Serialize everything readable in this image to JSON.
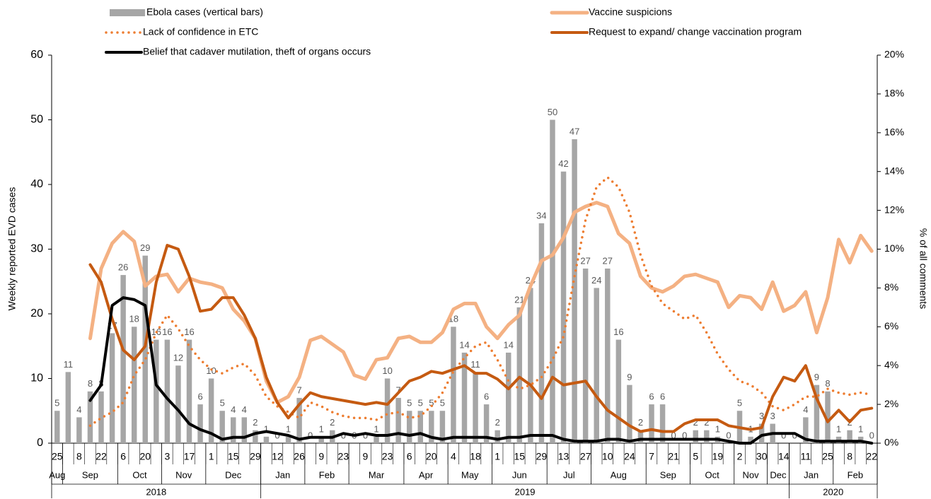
{
  "chart_data": {
    "type": "bar",
    "y_label": "Weekly reported EVD cases",
    "y2_label": "% of all comments",
    "categories": [
      "25",
      null,
      "8",
      null,
      "22",
      null,
      "6",
      null,
      "20",
      null,
      "3",
      null,
      "17",
      null,
      "1",
      null,
      "15",
      null,
      "29",
      null,
      "12",
      null,
      "26",
      null,
      "9",
      null,
      "23",
      null,
      "9",
      null,
      "23",
      null,
      "6",
      null,
      "20",
      null,
      "4",
      null,
      "18",
      null,
      "1",
      null,
      "15",
      null,
      "29",
      null,
      "13",
      null,
      "27",
      null,
      "10",
      null,
      "24",
      null,
      "7",
      null,
      "21",
      null,
      "5",
      null,
      "19",
      null,
      "2",
      null,
      "30",
      null,
      "14",
      null,
      "11",
      null,
      "25",
      null,
      "8",
      null,
      "22"
    ],
    "x_months": [
      "Aug",
      "Sep",
      null,
      null,
      null,
      null,
      "Oct",
      null,
      null,
      null,
      "Nov",
      null,
      null,
      null,
      "Dec",
      null,
      null,
      null,
      null,
      "Jan",
      null,
      null,
      null,
      "Feb",
      null,
      null,
      null,
      "Mar",
      null,
      null,
      null,
      null,
      "Apr",
      null,
      null,
      null,
      "May",
      null,
      null,
      null,
      "Jun",
      null,
      null,
      null,
      null,
      "Jul",
      null,
      null,
      null,
      "Aug",
      null,
      null,
      null,
      null,
      "Sep",
      null,
      null,
      null,
      "Oct",
      null,
      null,
      null,
      "Nov",
      null,
      null,
      "Dec",
      null,
      "Jan",
      null,
      null,
      null,
      "Feb",
      null,
      null,
      null
    ],
    "x_years": [
      "2018",
      null,
      null,
      null,
      null,
      null,
      null,
      null,
      null,
      null,
      null,
      null,
      null,
      null,
      null,
      null,
      null,
      null,
      null,
      "2019",
      null,
      null,
      null,
      null,
      null,
      null,
      null,
      null,
      null,
      null,
      null,
      null,
      null,
      null,
      null,
      null,
      null,
      null,
      null,
      null,
      null,
      null,
      null,
      null,
      null,
      null,
      null,
      null,
      null,
      null,
      null,
      null,
      null,
      null,
      null,
      null,
      null,
      null,
      null,
      null,
      null,
      null,
      null,
      null,
      null,
      null,
      null,
      "2020",
      null,
      null,
      null,
      null,
      null,
      null,
      null
    ],
    "ylim": [
      0,
      60
    ],
    "yticks": [
      0,
      10,
      20,
      30,
      40,
      50,
      60
    ],
    "y2lim": [
      0,
      20
    ],
    "y2ticks": [
      {
        "value": 0,
        "label": "0%"
      },
      {
        "value": 2,
        "label": "2%"
      },
      {
        "value": 4,
        "label": "4%"
      },
      {
        "value": 6,
        "label": "6%"
      },
      {
        "value": 8,
        "label": "8%"
      },
      {
        "value": 10,
        "label": "10%"
      },
      {
        "value": 12,
        "label": "12%"
      },
      {
        "value": 14,
        "label": "14%"
      },
      {
        "value": 16,
        "label": "16%"
      },
      {
        "value": 18,
        "label": "18%"
      },
      {
        "value": 20,
        "label": "20%"
      }
    ],
    "grid": false,
    "series": [
      {
        "name": "Ebola cases (vertical bars)",
        "type": "bar",
        "color": "#a6a6a6",
        "axis": "y",
        "values": [
          5,
          11,
          4,
          8,
          8,
          17,
          26,
          18,
          29,
          16,
          16,
          12,
          16,
          6,
          10,
          5,
          4,
          4,
          2,
          1,
          0,
          1,
          7,
          0,
          1,
          2,
          0,
          0,
          0,
          1,
          10,
          7,
          5,
          5,
          5,
          5,
          18,
          14,
          11,
          6,
          2,
          14,
          21,
          24,
          34,
          50,
          42,
          47,
          27,
          24,
          27,
          16,
          9,
          2,
          6,
          6,
          0,
          0,
          2,
          2,
          1,
          0,
          5,
          1,
          3,
          3,
          0,
          0,
          4,
          9,
          8,
          1,
          2,
          1,
          0
        ]
      },
      {
        "name": "Vaccine suspicions",
        "type": "line",
        "style": "solid",
        "color": "#f4b183",
        "axis": "y2",
        "values": [
          null,
          null,
          null,
          5.4,
          9.0,
          10.3,
          10.9,
          10.4,
          8.1,
          8.6,
          8.7,
          7.8,
          8.5,
          8.3,
          8.2,
          8.0,
          6.9,
          6.3,
          5.4,
          3.2,
          2.1,
          2.4,
          3.4,
          5.3,
          5.5,
          5.1,
          4.7,
          3.5,
          3.3,
          4.3,
          4.4,
          5.4,
          5.5,
          5.2,
          5.2,
          5.7,
          6.9,
          7.2,
          7.2,
          6.0,
          5.4,
          6.1,
          6.6,
          8.1,
          9.4,
          9.7,
          10.6,
          11.9,
          12.2,
          12.4,
          12.2,
          10.8,
          10.3,
          8.6,
          8.0,
          7.8,
          8.1,
          8.6,
          8.7,
          8.5,
          8.3,
          7.0,
          7.6,
          7.5,
          6.9,
          8.3,
          6.8,
          7.1,
          7.8,
          5.7,
          7.5,
          10.5,
          9.3,
          10.7,
          9.9
        ]
      },
      {
        "name": "Lack of confidence in ETC",
        "type": "line",
        "style": "dotted",
        "color": "#ed7d31",
        "axis": "y2",
        "values": [
          null,
          null,
          null,
          0.9,
          1.3,
          1.6,
          2.1,
          3.5,
          4.3,
          5.7,
          6.6,
          5.9,
          5.0,
          4.3,
          3.8,
          3.6,
          3.9,
          4.1,
          3.5,
          2.4,
          1.9,
          1.6,
          1.3,
          2.1,
          1.9,
          1.6,
          1.4,
          1.3,
          1.3,
          1.2,
          1.5,
          1.6,
          1.3,
          1.4,
          1.9,
          2.6,
          3.7,
          4.4,
          5.0,
          5.2,
          4.3,
          3.2,
          2.8,
          3.0,
          3.4,
          4.3,
          5.5,
          8.6,
          11.5,
          13.2,
          13.7,
          13.2,
          11.9,
          9.7,
          8.1,
          7.2,
          6.8,
          6.4,
          6.6,
          5.7,
          4.6,
          3.8,
          3.2,
          3.0,
          2.6,
          1.9,
          1.7,
          2.0,
          2.4,
          2.4,
          2.8,
          2.6,
          2.5,
          2.6,
          2.5
        ]
      },
      {
        "name": "Request to expand/ change vaccination program",
        "type": "line",
        "style": "solid",
        "color": "#c55a11",
        "axis": "y2",
        "values": [
          null,
          null,
          null,
          9.2,
          8.3,
          6.4,
          4.8,
          4.3,
          5.0,
          8.3,
          10.2,
          10.0,
          8.6,
          6.8,
          6.9,
          7.5,
          7.5,
          6.6,
          5.4,
          3.4,
          2.1,
          1.3,
          2.0,
          2.6,
          2.4,
          2.3,
          2.2,
          2.1,
          2.0,
          2.1,
          2.0,
          2.6,
          3.2,
          3.4,
          3.7,
          3.6,
          3.8,
          4.0,
          3.6,
          3.6,
          3.3,
          2.8,
          3.4,
          3.0,
          2.3,
          3.4,
          3.0,
          3.1,
          3.2,
          2.4,
          1.7,
          1.3,
          0.9,
          0.6,
          0.7,
          0.6,
          0.6,
          1.0,
          1.2,
          1.2,
          1.2,
          0.9,
          0.8,
          0.7,
          0.8,
          2.4,
          3.4,
          3.2,
          4.0,
          2.3,
          1.1,
          1.7,
          1.1,
          1.7,
          1.8
        ]
      },
      {
        "name": "Belief that cadaver mutilation, theft of organs occurs",
        "type": "line",
        "style": "solid",
        "color": "#000000",
        "axis": "y2",
        "values": [
          null,
          null,
          null,
          2.2,
          3.0,
          7.1,
          7.5,
          7.4,
          7.1,
          3.0,
          2.3,
          1.7,
          1.0,
          0.7,
          0.5,
          0.2,
          0.3,
          0.3,
          0.5,
          0.6,
          0.5,
          0.4,
          0.2,
          0.3,
          0.3,
          0.3,
          0.5,
          0.4,
          0.5,
          0.4,
          0.4,
          0.5,
          0.4,
          0.5,
          0.3,
          0.2,
          0.3,
          0.3,
          0.3,
          0.3,
          0.2,
          0.3,
          0.3,
          0.4,
          0.4,
          0.4,
          0.2,
          0.1,
          0.1,
          0.1,
          0.2,
          0.2,
          0.1,
          0.2,
          0.2,
          0.2,
          0.2,
          0.2,
          0.2,
          0.2,
          0.2,
          0.1,
          0.0,
          0.0,
          0.4,
          0.5,
          0.5,
          0.5,
          0.2,
          0.1,
          0.1,
          0.1,
          0.1,
          0.1,
          0.0
        ]
      }
    ]
  }
}
